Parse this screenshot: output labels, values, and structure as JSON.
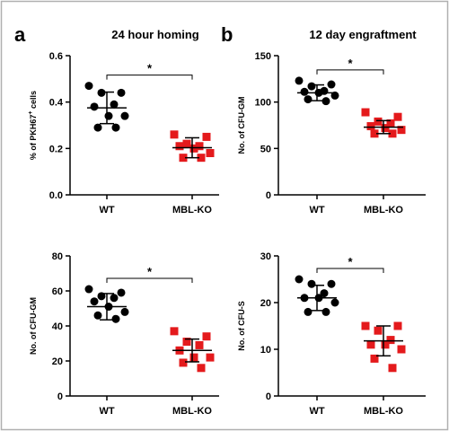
{
  "panel_letters": [
    "a",
    "b"
  ],
  "colors": {
    "WT": "#000000",
    "MBL-KO": "#e41a1c",
    "frame": "#b0b0b0"
  },
  "chart_data": [
    {
      "type": "scatter",
      "title": "24 hour homing",
      "ylabel_parts": [
        "% of PKH67",
        "+",
        " cells"
      ],
      "categories": [
        "WT",
        "MBL-KO"
      ],
      "ylim": [
        0,
        0.6
      ],
      "yticks": [
        0,
        0.2,
        0.4,
        0.6
      ],
      "ytick_labels": [
        "0.0",
        "0.2",
        "0.4",
        "0.6"
      ],
      "significance": "*",
      "series": [
        {
          "category": "WT",
          "marker": "circle",
          "mean": 0.375,
          "sd": 0.068,
          "values": [
            0.47,
            0.44,
            0.44,
            0.39,
            0.38,
            0.34,
            0.34,
            0.29,
            0.29
          ]
        },
        {
          "category": "MBL-KO",
          "marker": "square",
          "mean": 0.203,
          "sd": 0.043,
          "values": [
            0.26,
            0.25,
            0.22,
            0.21,
            0.21,
            0.2,
            0.18,
            0.16,
            0.16
          ]
        }
      ]
    },
    {
      "type": "scatter",
      "title": "12 day engraftment",
      "ylabel": "No. of CFU-GM",
      "categories": [
        "WT",
        "MBL-KO"
      ],
      "ylim": [
        0,
        150
      ],
      "yticks": [
        0,
        50,
        100,
        150
      ],
      "ytick_labels": [
        "0",
        "50",
        "100",
        "150"
      ],
      "significance": "*",
      "series": [
        {
          "category": "WT",
          "marker": "circle",
          "mean": 110,
          "sd": 8.5,
          "values": [
            123,
            119,
            117,
            112,
            111,
            110,
            107,
            103,
            101
          ]
        },
        {
          "category": "MBL-KO",
          "marker": "square",
          "mean": 73,
          "sd": 7,
          "values": [
            89,
            84,
            79,
            77,
            74,
            72,
            70,
            66,
            66
          ]
        }
      ]
    },
    {
      "type": "scatter",
      "title": "",
      "ylabel": "No. of CFU-GM",
      "categories": [
        "WT",
        "MBL-KO"
      ],
      "ylim": [
        0,
        80
      ],
      "yticks": [
        0,
        20,
        40,
        60,
        80
      ],
      "ytick_labels": [
        "0",
        "20",
        "40",
        "60",
        "80"
      ],
      "significance": "*",
      "series": [
        {
          "category": "WT",
          "marker": "circle",
          "mean": 51,
          "sd": 7.5,
          "values": [
            61,
            59,
            57,
            56,
            54,
            51,
            48,
            46,
            44
          ]
        },
        {
          "category": "MBL-KO",
          "marker": "square",
          "mean": 26,
          "sd": 6.5,
          "values": [
            37,
            34,
            31,
            29,
            26,
            22,
            22,
            19,
            16
          ]
        }
      ]
    },
    {
      "type": "scatter",
      "title": "",
      "ylabel": "No. of CFU-S",
      "categories": [
        "WT",
        "MBL-KO"
      ],
      "ylim": [
        0,
        30
      ],
      "yticks": [
        0,
        10,
        20,
        30
      ],
      "ytick_labels": [
        "0",
        "10",
        "20",
        "30"
      ],
      "significance": "*",
      "series": [
        {
          "category": "WT",
          "marker": "circle",
          "mean": 21,
          "sd": 2.7,
          "values": [
            25,
            24,
            24,
            22,
            21,
            21,
            20,
            18,
            18
          ]
        },
        {
          "category": "MBL-KO",
          "marker": "square",
          "mean": 11.8,
          "sd": 3.2,
          "values": [
            15,
            15,
            14,
            12,
            11,
            11,
            10,
            8,
            6
          ]
        }
      ]
    }
  ]
}
